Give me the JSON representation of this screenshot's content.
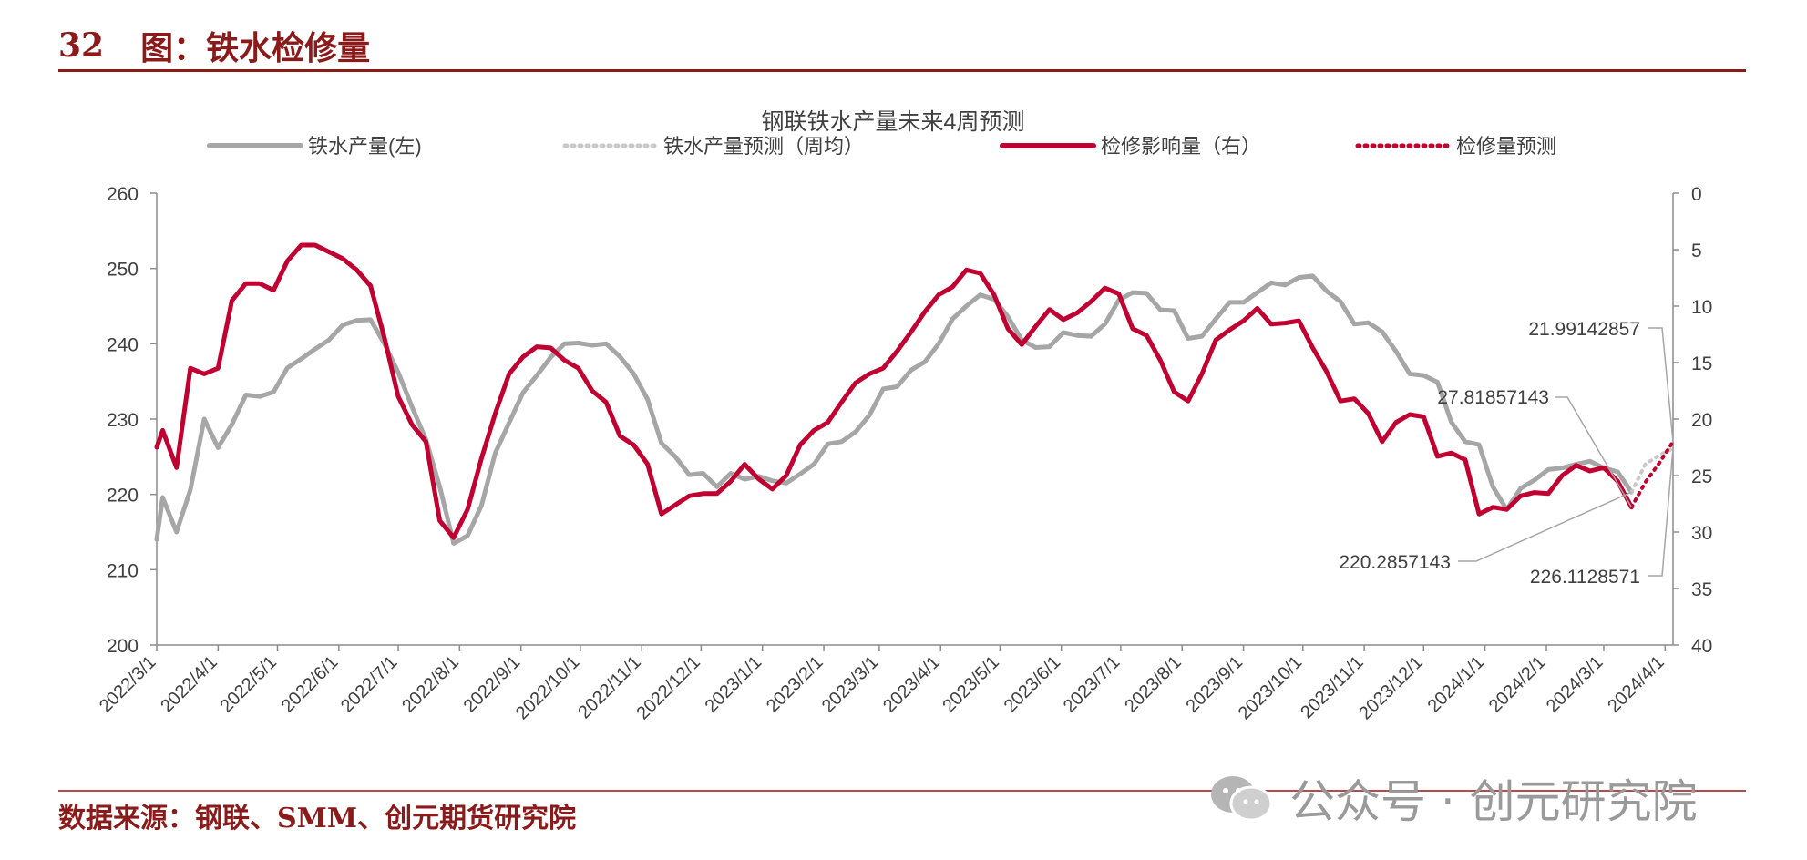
{
  "header": {
    "number": "32",
    "title": "图：铁水检修量"
  },
  "footer": {
    "source": "数据来源：钢联、SMM、创元期货研究院"
  },
  "watermark": {
    "text": "公众号 · 创元研究院",
    "icon": "wechat-icon"
  },
  "colors": {
    "brand": "#8b1a1a",
    "production": "#a6a6a6",
    "maintenance": "#c00030",
    "forecast_production": "#c8c8c8",
    "forecast_maintenance": "#c00030"
  },
  "chart_data": {
    "type": "line",
    "title": "钢联铁水产量未来4周预测",
    "legend_position": "top",
    "x_ticks": [
      "2022/3/1",
      "2022/4/1",
      "2022/5/1",
      "2022/6/1",
      "2022/7/1",
      "2022/8/1",
      "2022/9/1",
      "2022/10/1",
      "2022/11/1",
      "2022/12/1",
      "2023/1/1",
      "2023/2/1",
      "2023/3/1",
      "2023/4/1",
      "2023/5/1",
      "2023/6/1",
      "2023/7/1",
      "2023/8/1",
      "2023/9/1",
      "2023/10/1",
      "2023/11/1",
      "2023/12/1",
      "2024/1/1",
      "2024/2/1",
      "2024/3/1",
      "2024/4/1"
    ],
    "x_range": [
      "2022-03-01",
      "2024-04-05"
    ],
    "y_left": {
      "min": 200,
      "max": 260,
      "ticks": [
        "200",
        "210",
        "220",
        "230",
        "240",
        "250",
        "260"
      ]
    },
    "y_right": {
      "min": 0,
      "max": 40,
      "inverted": true,
      "ticks": [
        "0",
        "5",
        "10",
        "15",
        "20",
        "25",
        "30",
        "35",
        "40"
      ]
    },
    "series": [
      {
        "name": "铁水产量(左)",
        "axis": "left",
        "style": "solid",
        "points": [
          [
            "2022-03-01",
            214.0
          ],
          [
            "2022-03-04",
            219.6
          ],
          [
            "2022-03-11",
            215.0
          ],
          [
            "2022-03-18",
            220.6
          ],
          [
            "2022-03-25",
            230.0
          ],
          [
            "2022-04-01",
            226.2
          ],
          [
            "2022-04-08",
            229.3
          ],
          [
            "2022-04-15",
            233.2
          ],
          [
            "2022-04-22",
            233.0
          ],
          [
            "2022-04-29",
            233.6
          ],
          [
            "2022-05-06",
            236.8
          ],
          [
            "2022-05-13",
            238.0
          ],
          [
            "2022-05-20",
            239.3
          ],
          [
            "2022-05-27",
            240.5
          ],
          [
            "2022-06-03",
            242.5
          ],
          [
            "2022-06-10",
            243.1
          ],
          [
            "2022-06-17",
            243.2
          ],
          [
            "2022-06-24",
            240.0
          ],
          [
            "2022-07-01",
            236.2
          ],
          [
            "2022-07-08",
            231.6
          ],
          [
            "2022-07-15",
            227.3
          ],
          [
            "2022-07-22",
            221.0
          ],
          [
            "2022-07-29",
            213.5
          ],
          [
            "2022-08-05",
            214.5
          ],
          [
            "2022-08-12",
            218.5
          ],
          [
            "2022-08-19",
            225.5
          ],
          [
            "2022-08-26",
            229.5
          ],
          [
            "2022-09-02",
            233.5
          ],
          [
            "2022-09-09",
            235.8
          ],
          [
            "2022-09-16",
            238.2
          ],
          [
            "2022-09-23",
            240.0
          ],
          [
            "2022-09-30",
            240.1
          ],
          [
            "2022-10-07",
            239.8
          ],
          [
            "2022-10-14",
            240.0
          ],
          [
            "2022-10-21",
            238.3
          ],
          [
            "2022-10-28",
            236.0
          ],
          [
            "2022-11-04",
            232.6
          ],
          [
            "2022-11-11",
            226.8
          ],
          [
            "2022-11-18",
            225.0
          ],
          [
            "2022-11-25",
            222.6
          ],
          [
            "2022-12-02",
            222.8
          ],
          [
            "2022-12-09",
            221.0
          ],
          [
            "2022-12-16",
            222.8
          ],
          [
            "2022-12-23",
            222.0
          ],
          [
            "2022-12-30",
            222.4
          ],
          [
            "2023-01-06",
            221.8
          ],
          [
            "2023-01-13",
            221.5
          ],
          [
            "2023-01-20",
            222.7
          ],
          [
            "2023-01-27",
            224.0
          ],
          [
            "2023-02-03",
            226.7
          ],
          [
            "2023-02-10",
            227.0
          ],
          [
            "2023-02-17",
            228.3
          ],
          [
            "2023-02-24",
            230.5
          ],
          [
            "2023-03-03",
            234.0
          ],
          [
            "2023-03-10",
            234.3
          ],
          [
            "2023-03-17",
            236.5
          ],
          [
            "2023-03-24",
            237.6
          ],
          [
            "2023-03-31",
            240.0
          ],
          [
            "2023-04-07",
            243.3
          ],
          [
            "2023-04-14",
            245.0
          ],
          [
            "2023-04-21",
            246.5
          ],
          [
            "2023-04-28",
            245.9
          ],
          [
            "2023-05-05",
            243.6
          ],
          [
            "2023-05-12",
            240.5
          ],
          [
            "2023-05-19",
            239.5
          ],
          [
            "2023-05-26",
            239.6
          ],
          [
            "2023-06-02",
            241.5
          ],
          [
            "2023-06-09",
            241.1
          ],
          [
            "2023-06-16",
            241.0
          ],
          [
            "2023-06-23",
            242.6
          ],
          [
            "2023-06-30",
            245.8
          ],
          [
            "2023-07-07",
            246.8
          ],
          [
            "2023-07-14",
            246.7
          ],
          [
            "2023-07-21",
            244.5
          ],
          [
            "2023-07-28",
            244.4
          ],
          [
            "2023-08-04",
            240.7
          ],
          [
            "2023-08-11",
            241.0
          ],
          [
            "2023-08-18",
            243.3
          ],
          [
            "2023-08-25",
            245.5
          ],
          [
            "2023-09-01",
            245.5
          ],
          [
            "2023-09-08",
            246.8
          ],
          [
            "2023-09-15",
            248.1
          ],
          [
            "2023-09-22",
            247.8
          ],
          [
            "2023-09-29",
            248.8
          ],
          [
            "2023-10-06",
            249.0
          ],
          [
            "2023-10-13",
            247.0
          ],
          [
            "2023-10-20",
            245.6
          ],
          [
            "2023-10-27",
            242.6
          ],
          [
            "2023-11-03",
            242.8
          ],
          [
            "2023-11-10",
            241.6
          ],
          [
            "2023-11-17",
            239.0
          ],
          [
            "2023-11-24",
            236.0
          ],
          [
            "2023-12-01",
            235.8
          ],
          [
            "2023-12-08",
            234.9
          ],
          [
            "2023-12-15",
            229.6
          ],
          [
            "2023-12-22",
            227.0
          ],
          [
            "2023-12-29",
            226.6
          ],
          [
            "2024-01-05",
            221.0
          ],
          [
            "2024-01-12",
            218.0
          ],
          [
            "2024-01-19",
            220.8
          ],
          [
            "2024-01-26",
            221.9
          ],
          [
            "2024-02-02",
            223.3
          ],
          [
            "2024-02-09",
            223.5
          ],
          [
            "2024-02-16",
            224.0
          ],
          [
            "2024-02-23",
            224.4
          ],
          [
            "2024-03-01",
            223.5
          ],
          [
            "2024-03-08",
            223.0
          ],
          [
            "2024-03-15",
            220.3
          ]
        ]
      },
      {
        "name": "铁水产量预测（周均）",
        "axis": "left",
        "style": "dotted",
        "points": [
          [
            "2024-03-15",
            220.3
          ],
          [
            "2024-03-22",
            224.0
          ],
          [
            "2024-03-29",
            225.2
          ],
          [
            "2024-04-05",
            226.1
          ]
        ]
      },
      {
        "name": "检修影响量（右）",
        "axis": "right",
        "style": "solid",
        "points": [
          [
            "2022-03-01",
            22.5
          ],
          [
            "2022-03-04",
            21.0
          ],
          [
            "2022-03-11",
            24.3
          ],
          [
            "2022-03-18",
            15.5
          ],
          [
            "2022-03-25",
            16.0
          ],
          [
            "2022-04-01",
            15.5
          ],
          [
            "2022-04-08",
            9.5
          ],
          [
            "2022-04-15",
            8.0
          ],
          [
            "2022-04-22",
            8.0
          ],
          [
            "2022-04-29",
            8.6
          ],
          [
            "2022-05-06",
            6.0
          ],
          [
            "2022-05-13",
            4.6
          ],
          [
            "2022-05-20",
            4.6
          ],
          [
            "2022-05-27",
            5.2
          ],
          [
            "2022-06-03",
            5.8
          ],
          [
            "2022-06-10",
            6.8
          ],
          [
            "2022-06-17",
            8.2
          ],
          [
            "2022-06-24",
            12.8
          ],
          [
            "2022-07-01",
            18.0
          ],
          [
            "2022-07-08",
            20.5
          ],
          [
            "2022-07-15",
            22.0
          ],
          [
            "2022-07-22",
            29.0
          ],
          [
            "2022-07-29",
            30.5
          ],
          [
            "2022-08-05",
            28.0
          ],
          [
            "2022-08-12",
            23.5
          ],
          [
            "2022-08-19",
            19.5
          ],
          [
            "2022-08-26",
            16.0
          ],
          [
            "2022-09-02",
            14.5
          ],
          [
            "2022-09-09",
            13.6
          ],
          [
            "2022-09-16",
            13.7
          ],
          [
            "2022-09-23",
            14.8
          ],
          [
            "2022-09-30",
            15.5
          ],
          [
            "2022-10-07",
            17.5
          ],
          [
            "2022-10-14",
            18.5
          ],
          [
            "2022-10-21",
            21.5
          ],
          [
            "2022-10-28",
            22.3
          ],
          [
            "2022-11-04",
            24.0
          ],
          [
            "2022-11-11",
            28.4
          ],
          [
            "2022-11-18",
            27.6
          ],
          [
            "2022-11-25",
            26.8
          ],
          [
            "2022-12-02",
            26.6
          ],
          [
            "2022-12-09",
            26.6
          ],
          [
            "2022-12-16",
            25.5
          ],
          [
            "2022-12-23",
            24.0
          ],
          [
            "2022-12-30",
            25.3
          ],
          [
            "2023-01-06",
            26.2
          ],
          [
            "2023-01-13",
            25.0
          ],
          [
            "2023-01-20",
            22.3
          ],
          [
            "2023-01-27",
            21.0
          ],
          [
            "2023-02-03",
            20.3
          ],
          [
            "2023-02-10",
            18.5
          ],
          [
            "2023-02-17",
            16.8
          ],
          [
            "2023-02-24",
            16.0
          ],
          [
            "2023-03-03",
            15.5
          ],
          [
            "2023-03-10",
            14.0
          ],
          [
            "2023-03-17",
            12.3
          ],
          [
            "2023-03-24",
            10.5
          ],
          [
            "2023-03-31",
            9.0
          ],
          [
            "2023-04-07",
            8.3
          ],
          [
            "2023-04-14",
            6.8
          ],
          [
            "2023-04-21",
            7.1
          ],
          [
            "2023-04-28",
            9.0
          ],
          [
            "2023-05-05",
            12.0
          ],
          [
            "2023-05-12",
            13.4
          ],
          [
            "2023-05-19",
            11.8
          ],
          [
            "2023-05-26",
            10.3
          ],
          [
            "2023-06-02",
            11.2
          ],
          [
            "2023-06-09",
            10.6
          ],
          [
            "2023-06-16",
            9.6
          ],
          [
            "2023-06-23",
            8.4
          ],
          [
            "2023-06-30",
            8.9
          ],
          [
            "2023-07-07",
            12.0
          ],
          [
            "2023-07-14",
            12.6
          ],
          [
            "2023-07-21",
            14.8
          ],
          [
            "2023-07-28",
            17.6
          ],
          [
            "2023-08-04",
            18.4
          ],
          [
            "2023-08-11",
            16.0
          ],
          [
            "2023-08-18",
            13.0
          ],
          [
            "2023-08-25",
            12.1
          ],
          [
            "2023-09-01",
            11.3
          ],
          [
            "2023-09-08",
            10.2
          ],
          [
            "2023-09-15",
            11.6
          ],
          [
            "2023-09-22",
            11.5
          ],
          [
            "2023-09-29",
            11.3
          ],
          [
            "2023-10-06",
            13.7
          ],
          [
            "2023-10-13",
            15.8
          ],
          [
            "2023-10-20",
            18.4
          ],
          [
            "2023-10-27",
            18.2
          ],
          [
            "2023-11-03",
            19.5
          ],
          [
            "2023-11-10",
            22.0
          ],
          [
            "2023-11-17",
            20.3
          ],
          [
            "2023-11-24",
            19.6
          ],
          [
            "2023-12-01",
            19.8
          ],
          [
            "2023-12-08",
            23.3
          ],
          [
            "2023-12-15",
            23.0
          ],
          [
            "2023-12-22",
            23.6
          ],
          [
            "2023-12-29",
            28.4
          ],
          [
            "2024-01-05",
            27.8
          ],
          [
            "2024-01-12",
            28.0
          ],
          [
            "2024-01-19",
            26.8
          ],
          [
            "2024-01-26",
            26.5
          ],
          [
            "2024-02-02",
            26.6
          ],
          [
            "2024-02-09",
            25.0
          ],
          [
            "2024-02-16",
            24.1
          ],
          [
            "2024-02-23",
            24.6
          ],
          [
            "2024-03-01",
            24.3
          ],
          [
            "2024-03-08",
            25.5
          ],
          [
            "2024-03-15",
            27.8
          ]
        ]
      },
      {
        "name": "检修量预测",
        "axis": "right",
        "style": "dotted",
        "points": [
          [
            "2024-03-15",
            27.8
          ],
          [
            "2024-03-22",
            25.6
          ],
          [
            "2024-03-29",
            23.9
          ],
          [
            "2024-04-05",
            22.0
          ]
        ]
      }
    ],
    "annotations": [
      {
        "text": "21.99142857",
        "axis": "right",
        "target": [
          "2024-04-05",
          22.0
        ]
      },
      {
        "text": "27.81857143",
        "axis": "right",
        "target": [
          "2024-03-15",
          27.8
        ]
      },
      {
        "text": "220.2857143",
        "axis": "left",
        "target": [
          "2024-03-15",
          220.3
        ]
      },
      {
        "text": "226.1128571",
        "axis": "left",
        "target": [
          "2024-04-05",
          226.1
        ]
      }
    ]
  }
}
